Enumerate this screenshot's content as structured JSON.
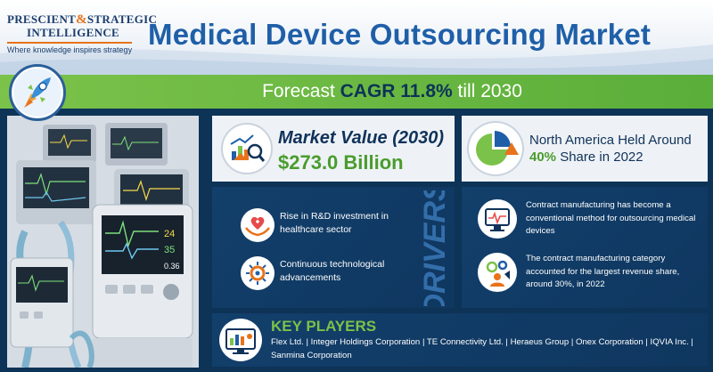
{
  "logo": {
    "line1_a": "PRESCIENT",
    "amp": "&",
    "line1_b": "STRATEGIC",
    "line2": "INTELLIGENCE",
    "tagline": "Where knowledge inspires strategy"
  },
  "title": "Medical Device Outsourcing Market",
  "cagr": {
    "prefix": "Forecast ",
    "highlight": "CAGR 11.8%",
    "suffix": " till 2030"
  },
  "market_value": {
    "label": "Market Value (2030)",
    "value": "$273.0 Billion",
    "icon": "market-chart-icon"
  },
  "region": {
    "line1": "North America Held Around",
    "highlight": "40%",
    "line2_rest": " Share in 2022",
    "icon": "pie-chart-icon"
  },
  "drivers": {
    "heading": "DRIVERS",
    "items": [
      {
        "text": "Rise in R&D investment in healthcare sector",
        "icon": "heart-hands-icon"
      },
      {
        "text": "Continuous technological advancements",
        "icon": "circuit-gear-icon"
      }
    ]
  },
  "insights": {
    "items": [
      {
        "text": "Contract manufacturing has become a conventional method for outsourcing medical devices",
        "icon": "monitor-device-icon"
      },
      {
        "text": "The contract manufacturing category accounted for the largest revenue share, around 30%, in 2022",
        "icon": "gears-worker-icon"
      }
    ]
  },
  "key_players": {
    "heading": "KEY PLAYERS",
    "list": "Flex Ltd. | Integer Holdings Corporation | TE Connectivity Ltd. | Heraeus Group | Onex Corporation | IQVIA Inc. | Sanmina Corporation",
    "icon": "key-players-icon"
  },
  "colors": {
    "navy": "#0d3357",
    "title_blue": "#1f5fa8",
    "green": "#7bc24a",
    "value_green": "#4a9c2e",
    "orange": "#e8731a"
  }
}
